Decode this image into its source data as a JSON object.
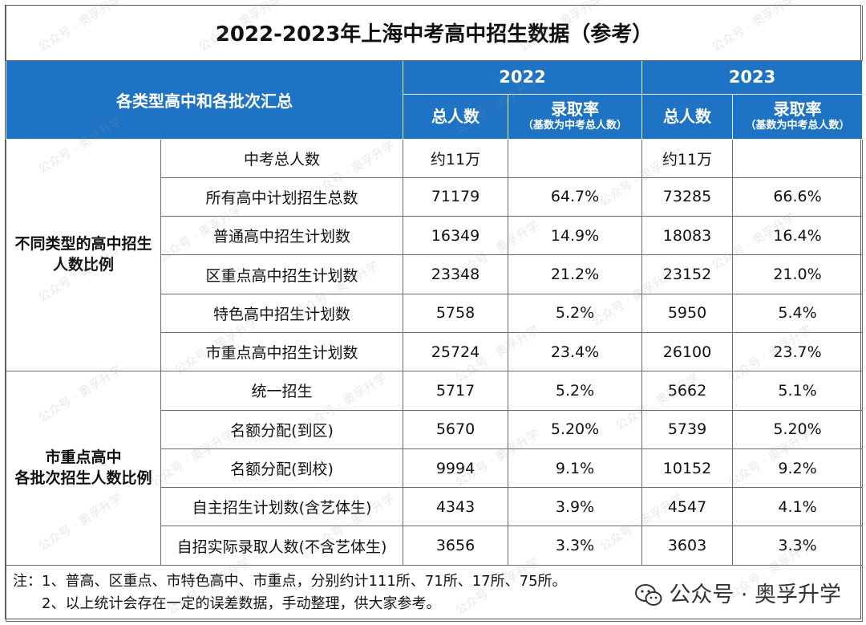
{
  "title": "2022-2023年上海中考高中招生数据（参考）",
  "header": {
    "category": "各类型高中和各批次汇总",
    "years": [
      "2022",
      "2023"
    ],
    "total_label": "总人数",
    "rate_label": "录取率",
    "rate_note": "（基数为中考总人数）"
  },
  "groups": [
    {
      "label_line1": "不同类型的高中招生",
      "label_line2": "人数比例"
    },
    {
      "label_line1": "市重点高中",
      "label_line2": "各批次招生人数比例"
    }
  ],
  "rows": [
    {
      "name": "中考总人数",
      "t2022": "约11万",
      "r2022": "",
      "t2023": "约11万",
      "r2023": ""
    },
    {
      "name": "所有高中计划招生总数",
      "t2022": "71179",
      "r2022": "64.7%",
      "t2023": "73285",
      "r2023": "66.6%"
    },
    {
      "name": "普通高中招生计划数",
      "t2022": "16349",
      "r2022": "14.9%",
      "t2023": "18083",
      "r2023": "16.4%"
    },
    {
      "name": "区重点高中招生计划数",
      "t2022": "23348",
      "r2022": "21.2%",
      "t2023": "23152",
      "r2023": "21.0%"
    },
    {
      "name": "特色高中招生计划数",
      "t2022": "5758",
      "r2022": "5.2%",
      "t2023": "5950",
      "r2023": "5.4%"
    },
    {
      "name": "市重点高中招生计划数",
      "t2022": "25724",
      "r2022": "23.4%",
      "t2023": "26100",
      "r2023": "23.7%"
    },
    {
      "name": "统一招生",
      "t2022": "5717",
      "r2022": "5.2%",
      "t2023": "5662",
      "r2023": "5.1%"
    },
    {
      "name": "名额分配(到区)",
      "t2022": "5670",
      "r2022": "5.20%",
      "t2023": "5739",
      "r2023": "5.20%"
    },
    {
      "name": "名额分配(到校)",
      "t2022": "9994",
      "r2022": "9.1%",
      "t2023": "10152",
      "r2023": "9.2%"
    },
    {
      "name": "自主招生计划数(含艺体生)",
      "t2022": "4343",
      "r2022": "3.9%",
      "t2023": "4547",
      "r2023": "4.1%"
    },
    {
      "name": "自招实际录取人数(不含艺体生)",
      "t2022": "3656",
      "r2022": "3.3%",
      "t2023": "3603",
      "r2023": "3.3%"
    }
  ],
  "notes": {
    "line1": "注：1、普高、区重点、市特色高中、市重点，分别约计111所、71所、17所、75所。",
    "line2": "2、以上统计会存在一定的误差数据，手动整理，供大家参考。"
  },
  "brand": {
    "text": "公众号 · 奥孚升学",
    "icon": "wechat-icon"
  },
  "watermark": "公众号 · 奥孚升学",
  "colors": {
    "header_bg": "#1f73c4",
    "header_text": "#ffffff"
  }
}
